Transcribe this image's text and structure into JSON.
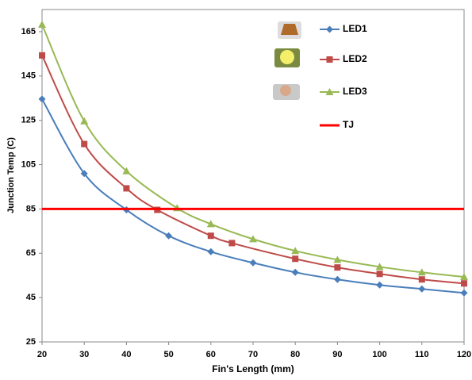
{
  "chart_data": {
    "type": "line",
    "x_label": "Fin's Length (mm)",
    "y_label": "Junction Temp  (C)",
    "xlim": [
      20,
      120
    ],
    "xticks": [
      20,
      30,
      40,
      50,
      60,
      70,
      80,
      90,
      100,
      110,
      120
    ],
    "ylim": [
      25,
      175
    ],
    "yticks": [
      25,
      45,
      65,
      85,
      105,
      125,
      145,
      165
    ],
    "series": [
      {
        "name": "LED1",
        "color": "#4a7ebb",
        "marker": "diamond",
        "x": [
          20,
          30,
          40,
          50,
          60,
          70,
          80,
          90,
          100,
          110,
          120
        ],
        "values": [
          134.6,
          101,
          84.6,
          72.9,
          65.7,
          60.7,
          56.4,
          53.2,
          50.7,
          48.9,
          47.1
        ]
      },
      {
        "name": "LED2",
        "color": "#be4b48",
        "marker": "square",
        "x": [
          20,
          30,
          40,
          47.3,
          60,
          65,
          80,
          90,
          100,
          110,
          120
        ],
        "values": [
          154.3,
          114.3,
          94.3,
          84.6,
          72.9,
          69.6,
          62.5,
          58.6,
          55.7,
          53.2,
          51.4
        ]
      },
      {
        "name": "LED3",
        "color": "#98b954",
        "marker": "triangle",
        "x": [
          20,
          30,
          40,
          52,
          60,
          70,
          80,
          90,
          100,
          110,
          120
        ],
        "values": [
          168.2,
          124.6,
          102.1,
          85.4,
          78.2,
          71.4,
          66.1,
          62.1,
          58.9,
          56.4,
          54.3
        ]
      },
      {
        "name": "TJ",
        "color": "#ff0000",
        "marker": "none",
        "x": [
          20,
          120
        ],
        "values": [
          85,
          85
        ]
      }
    ]
  }
}
